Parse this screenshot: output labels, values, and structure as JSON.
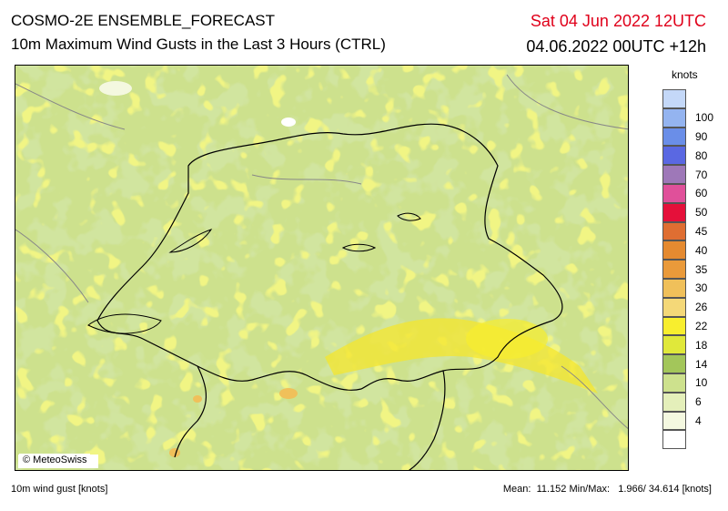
{
  "header": {
    "title": "COSMO-2E ENSEMBLE_FORECAST",
    "subtitle": "10m Maximum Wind Gusts in the Last 3 Hours (CTRL)",
    "valid_time": "Sat 04 Jun 2022 12UTC",
    "run_time": "04.06.2022 00UTC +12h"
  },
  "map": {
    "credit": "© MeteoSwiss"
  },
  "legend": {
    "unit": "knots",
    "levels": [
      {
        "label": "",
        "color": "#ffffff"
      },
      {
        "label": "4",
        "color": "#f4f8e0"
      },
      {
        "label": "6",
        "color": "#e4efba"
      },
      {
        "label": "10",
        "color": "#cde18d"
      },
      {
        "label": "14",
        "color": "#a3c65a"
      },
      {
        "label": "18",
        "color": "#e0e83a"
      },
      {
        "label": "22",
        "color": "#f8ee2e"
      },
      {
        "label": "26",
        "color": "#f4d878"
      },
      {
        "label": "30",
        "color": "#f0c05a"
      },
      {
        "label": "35",
        "color": "#ea9a3a"
      },
      {
        "label": "40",
        "color": "#e58a30"
      },
      {
        "label": "45",
        "color": "#df6e32"
      },
      {
        "label": "50",
        "color": "#e5103a"
      },
      {
        "label": "60",
        "color": "#e0509a"
      },
      {
        "label": "70",
        "color": "#9e78b8"
      },
      {
        "label": "80",
        "color": "#5a68e2"
      },
      {
        "label": "90",
        "color": "#6a8ee8"
      },
      {
        "label": "100",
        "color": "#94b4f0"
      },
      {
        "label": "",
        "color": "#c4d8f8"
      }
    ]
  },
  "footer": {
    "variable": "10m wind gust [knots]",
    "stats": "Mean:  11.152 Min/Max:   1.966/ 34.614 [knots]"
  }
}
